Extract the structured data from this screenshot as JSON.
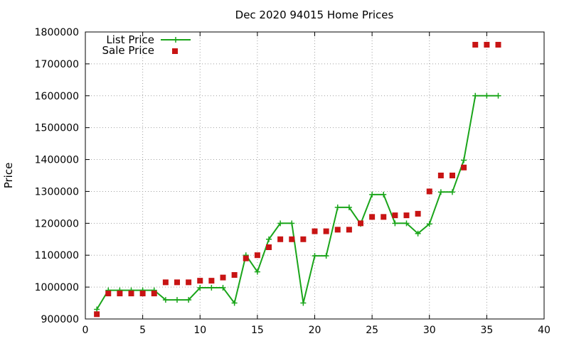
{
  "chart_data": {
    "type": "line",
    "title": "Dec 2020 94015 Home Prices",
    "xlabel": "",
    "ylabel": "Price",
    "xlim": [
      0,
      40
    ],
    "ylim": [
      900000,
      1800000
    ],
    "xticks": [
      "0",
      "5",
      "10",
      "15",
      "20",
      "25",
      "30",
      "35",
      "40"
    ],
    "yticks": [
      "900000",
      "1000000",
      "1100000",
      "1200000",
      "1300000",
      "1400000",
      "1500000",
      "1600000",
      "1700000",
      "1800000"
    ],
    "grid": true,
    "legend_position": "top-left",
    "series": [
      {
        "name": "List Price",
        "style": "line-with-plus-markers",
        "color": "#1aa51a",
        "x": [
          1,
          2,
          3,
          4,
          5,
          6,
          7,
          8,
          9,
          10,
          11,
          12,
          13,
          14,
          15,
          16,
          17,
          18,
          19,
          20,
          21,
          22,
          23,
          24,
          25,
          26,
          27,
          28,
          29,
          30,
          31,
          32,
          33,
          34,
          35,
          36
        ],
        "values": [
          930000,
          990000,
          990000,
          990000,
          990000,
          990000,
          960000,
          960000,
          960000,
          998000,
          998000,
          998000,
          950000,
          1100000,
          1048000,
          1150000,
          1200000,
          1200000,
          950000,
          1098000,
          1098000,
          1250000,
          1250000,
          1198000,
          1290000,
          1290000,
          1200000,
          1200000,
          1168000,
          1198000,
          1298000,
          1298000,
          1398000,
          1600000,
          1600000,
          1600000
        ]
      },
      {
        "name": "Sale Price",
        "style": "square-markers",
        "color": "#c81414",
        "x": [
          1,
          2,
          3,
          4,
          5,
          6,
          7,
          8,
          9,
          10,
          11,
          12,
          13,
          14,
          15,
          16,
          17,
          18,
          19,
          20,
          21,
          22,
          23,
          24,
          25,
          26,
          27,
          28,
          29,
          30,
          31,
          32,
          33,
          34,
          35,
          36
        ],
        "values": [
          915000,
          980000,
          980000,
          980000,
          980000,
          980000,
          1015000,
          1015000,
          1015000,
          1020000,
          1020000,
          1030000,
          1038000,
          1090000,
          1100000,
          1125000,
          1150000,
          1150000,
          1150000,
          1175000,
          1175000,
          1180000,
          1180000,
          1200000,
          1220000,
          1220000,
          1225000,
          1225000,
          1230000,
          1300000,
          1350000,
          1350000,
          1375000,
          1760000,
          1760000,
          1760000
        ]
      }
    ]
  }
}
